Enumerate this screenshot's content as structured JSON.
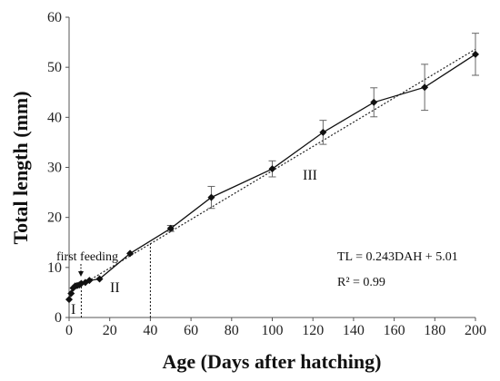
{
  "chart_data": {
    "type": "line",
    "xlabel": "Age (Days after hatching)",
    "ylabel": "Total length (mm)",
    "xlim": [
      0,
      200
    ],
    "ylim": [
      0,
      60
    ],
    "xticks": [
      0,
      20,
      40,
      60,
      80,
      100,
      120,
      140,
      160,
      180,
      200
    ],
    "yticks": [
      0,
      10,
      20,
      30,
      40,
      50,
      60
    ],
    "grid": false,
    "series": [
      {
        "marker": "diamond",
        "x": [
          0,
          1,
          2,
          3,
          4,
          5,
          6,
          8,
          10,
          15,
          30,
          50,
          70,
          100,
          125,
          150,
          175,
          200
        ],
        "y": [
          3.6,
          4.8,
          5.9,
          6.3,
          6.4,
          6.5,
          6.8,
          7.0,
          7.4,
          7.7,
          12.8,
          17.8,
          24.0,
          29.7,
          37.0,
          43.0,
          46.0,
          52.6
        ],
        "error": [
          0.3,
          0.3,
          0.3,
          0.3,
          0.3,
          0.3,
          0.3,
          0.3,
          0.3,
          0.3,
          0.4,
          0.6,
          2.2,
          1.6,
          2.4,
          2.9,
          4.6,
          4.2
        ]
      }
    ],
    "trendline": {
      "slope": 0.243,
      "intercept": 5.01,
      "style": "dotted"
    },
    "stage_boundaries": [
      {
        "x": 6,
        "y_top": 7.0
      },
      {
        "x": 40,
        "y_top": 15.0
      }
    ],
    "annotations": {
      "first_feeding": "first feeding",
      "first_feeding_x": 6,
      "stage_I": "I",
      "stage_II": "II",
      "stage_III": "III",
      "equation": "TL = 0.243DAH + 5.01",
      "r_squared": "R² = 0.99"
    }
  }
}
